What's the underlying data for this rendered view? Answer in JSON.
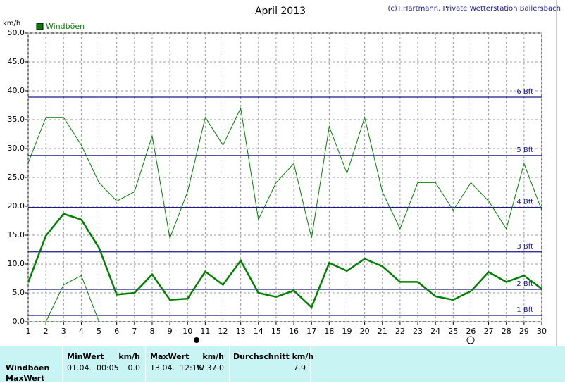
{
  "chart_data": {
    "type": "line",
    "title": "April 2013",
    "copyright": "(c)T.Hartmann, Private Wetterstation Ballersbach",
    "y_label": "km/h",
    "x": [
      1,
      2,
      3,
      4,
      5,
      6,
      7,
      8,
      9,
      10,
      11,
      12,
      13,
      14,
      15,
      16,
      17,
      18,
      19,
      20,
      21,
      22,
      23,
      24,
      25,
      26,
      27,
      28,
      29,
      30
    ],
    "xlim": [
      1,
      30
    ],
    "ylim": [
      0,
      50
    ],
    "yticks": [
      {
        "value": 0,
        "label": "0.0"
      },
      {
        "value": 5,
        "label": "5.0"
      },
      {
        "value": 10,
        "label": "10.0"
      },
      {
        "value": 15,
        "label": "15.0"
      },
      {
        "value": 20,
        "label": "20.0"
      },
      {
        "value": 25,
        "label": "25.0"
      },
      {
        "value": 30,
        "label": "30.0"
      },
      {
        "value": 35,
        "label": "35.0"
      },
      {
        "value": 40,
        "label": "40.0"
      },
      {
        "value": 45,
        "label": "45.0"
      },
      {
        "value": 50,
        "label": "50.0"
      }
    ],
    "grid": true,
    "series": [
      {
        "name": "Windböen",
        "color": "#008000",
        "width": 2.5,
        "values": [
          6.8,
          14.9,
          18.7,
          17.7,
          12.8,
          4.7,
          5.0,
          8.2,
          3.8,
          4.0,
          8.7,
          6.4,
          10.6,
          5.0,
          4.3,
          5.4,
          2.5,
          10.2,
          8.8,
          10.9,
          9.6,
          6.9,
          6.9,
          4.4,
          3.8,
          5.3,
          8.6,
          6.9,
          8.0,
          5.7
        ]
      },
      {
        "color": "#008000",
        "width": 1,
        "values": [
          27.5,
          35.4,
          35.4,
          30.6,
          24.1,
          20.9,
          22.5,
          32.2,
          14.5,
          22.5,
          35.4,
          30.6,
          37.0,
          17.7,
          24.1,
          27.4,
          14.5,
          33.8,
          25.7,
          35.4,
          22.5,
          16.1,
          24.1,
          24.1,
          19.3,
          24.1,
          20.9,
          16.1,
          27.4,
          19.3
        ]
      },
      {
        "color": "#008000",
        "width": 1,
        "values": [
          null,
          0,
          6.4,
          8.0,
          0,
          null,
          null,
          null,
          null,
          null,
          null,
          null,
          null,
          null,
          null,
          null,
          null,
          null,
          null,
          null,
          null,
          null,
          null,
          null,
          null,
          null,
          null,
          null,
          null,
          null
        ]
      }
    ],
    "reference_lines": [
      {
        "value": 1.1,
        "label": "1 Bft"
      },
      {
        "value": 5.6,
        "label": "2 Bft"
      },
      {
        "value": 12.1,
        "label": "3 Bft"
      },
      {
        "value": 19.8,
        "label": "4 Bft"
      },
      {
        "value": 28.8,
        "label": "5 Bft"
      },
      {
        "value": 38.9,
        "label": "6 Bft"
      }
    ],
    "reference_color": "#1a1a8c",
    "legend": "top-left"
  },
  "table": {
    "header": [
      "MinWert",
      "km/h",
      "MaxWert",
      "km/h",
      "Durchschnitt km/h"
    ],
    "rows": [
      {
        "label": "Windböen",
        "cells": [
          "01.04.  00:05",
          "0.0",
          "13.04.  12:15",
          "W 37.0",
          "7.9"
        ]
      },
      {
        "label": "MaxWert",
        "cells": []
      }
    ]
  }
}
